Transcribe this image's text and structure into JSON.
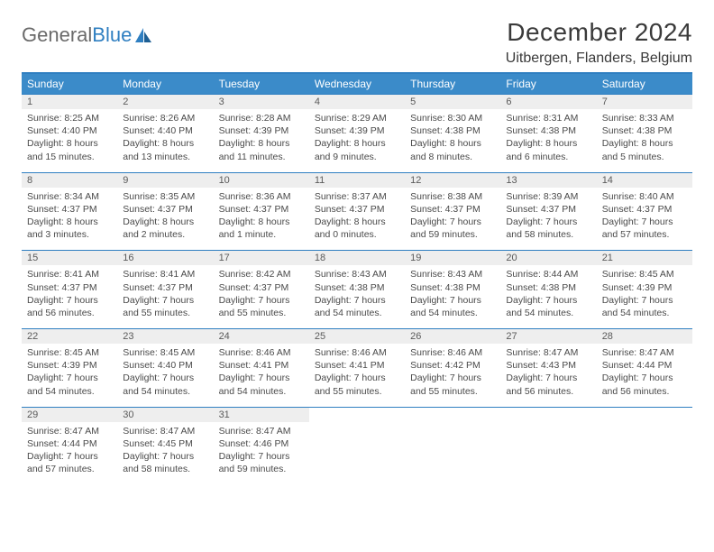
{
  "brand": {
    "part1": "General",
    "part2": "Blue"
  },
  "title": "December 2024",
  "location": "Uitbergen, Flanders, Belgium",
  "colors": {
    "header_bg": "#3b8bc9",
    "accent_line": "#2f7fc1",
    "daynum_bg": "#eeeeee",
    "text": "#3a3a3a",
    "white": "#ffffff"
  },
  "weekdays": [
    "Sunday",
    "Monday",
    "Tuesday",
    "Wednesday",
    "Thursday",
    "Friday",
    "Saturday"
  ],
  "weeks": [
    [
      {
        "n": "1",
        "sr": "8:25 AM",
        "ss": "4:40 PM",
        "dl": "8 hours and 15 minutes."
      },
      {
        "n": "2",
        "sr": "8:26 AM",
        "ss": "4:40 PM",
        "dl": "8 hours and 13 minutes."
      },
      {
        "n": "3",
        "sr": "8:28 AM",
        "ss": "4:39 PM",
        "dl": "8 hours and 11 minutes."
      },
      {
        "n": "4",
        "sr": "8:29 AM",
        "ss": "4:39 PM",
        "dl": "8 hours and 9 minutes."
      },
      {
        "n": "5",
        "sr": "8:30 AM",
        "ss": "4:38 PM",
        "dl": "8 hours and 8 minutes."
      },
      {
        "n": "6",
        "sr": "8:31 AM",
        "ss": "4:38 PM",
        "dl": "8 hours and 6 minutes."
      },
      {
        "n": "7",
        "sr": "8:33 AM",
        "ss": "4:38 PM",
        "dl": "8 hours and 5 minutes."
      }
    ],
    [
      {
        "n": "8",
        "sr": "8:34 AM",
        "ss": "4:37 PM",
        "dl": "8 hours and 3 minutes."
      },
      {
        "n": "9",
        "sr": "8:35 AM",
        "ss": "4:37 PM",
        "dl": "8 hours and 2 minutes."
      },
      {
        "n": "10",
        "sr": "8:36 AM",
        "ss": "4:37 PM",
        "dl": "8 hours and 1 minute."
      },
      {
        "n": "11",
        "sr": "8:37 AM",
        "ss": "4:37 PM",
        "dl": "8 hours and 0 minutes."
      },
      {
        "n": "12",
        "sr": "8:38 AM",
        "ss": "4:37 PM",
        "dl": "7 hours and 59 minutes."
      },
      {
        "n": "13",
        "sr": "8:39 AM",
        "ss": "4:37 PM",
        "dl": "7 hours and 58 minutes."
      },
      {
        "n": "14",
        "sr": "8:40 AM",
        "ss": "4:37 PM",
        "dl": "7 hours and 57 minutes."
      }
    ],
    [
      {
        "n": "15",
        "sr": "8:41 AM",
        "ss": "4:37 PM",
        "dl": "7 hours and 56 minutes."
      },
      {
        "n": "16",
        "sr": "8:41 AM",
        "ss": "4:37 PM",
        "dl": "7 hours and 55 minutes."
      },
      {
        "n": "17",
        "sr": "8:42 AM",
        "ss": "4:37 PM",
        "dl": "7 hours and 55 minutes."
      },
      {
        "n": "18",
        "sr": "8:43 AM",
        "ss": "4:38 PM",
        "dl": "7 hours and 54 minutes."
      },
      {
        "n": "19",
        "sr": "8:43 AM",
        "ss": "4:38 PM",
        "dl": "7 hours and 54 minutes."
      },
      {
        "n": "20",
        "sr": "8:44 AM",
        "ss": "4:38 PM",
        "dl": "7 hours and 54 minutes."
      },
      {
        "n": "21",
        "sr": "8:45 AM",
        "ss": "4:39 PM",
        "dl": "7 hours and 54 minutes."
      }
    ],
    [
      {
        "n": "22",
        "sr": "8:45 AM",
        "ss": "4:39 PM",
        "dl": "7 hours and 54 minutes."
      },
      {
        "n": "23",
        "sr": "8:45 AM",
        "ss": "4:40 PM",
        "dl": "7 hours and 54 minutes."
      },
      {
        "n": "24",
        "sr": "8:46 AM",
        "ss": "4:41 PM",
        "dl": "7 hours and 54 minutes."
      },
      {
        "n": "25",
        "sr": "8:46 AM",
        "ss": "4:41 PM",
        "dl": "7 hours and 55 minutes."
      },
      {
        "n": "26",
        "sr": "8:46 AM",
        "ss": "4:42 PM",
        "dl": "7 hours and 55 minutes."
      },
      {
        "n": "27",
        "sr": "8:47 AM",
        "ss": "4:43 PM",
        "dl": "7 hours and 56 minutes."
      },
      {
        "n": "28",
        "sr": "8:47 AM",
        "ss": "4:44 PM",
        "dl": "7 hours and 56 minutes."
      }
    ],
    [
      {
        "n": "29",
        "sr": "8:47 AM",
        "ss": "4:44 PM",
        "dl": "7 hours and 57 minutes."
      },
      {
        "n": "30",
        "sr": "8:47 AM",
        "ss": "4:45 PM",
        "dl": "7 hours and 58 minutes."
      },
      {
        "n": "31",
        "sr": "8:47 AM",
        "ss": "4:46 PM",
        "dl": "7 hours and 59 minutes."
      },
      null,
      null,
      null,
      null
    ]
  ],
  "labels": {
    "sunrise": "Sunrise:",
    "sunset": "Sunset:",
    "daylight": "Daylight:"
  }
}
